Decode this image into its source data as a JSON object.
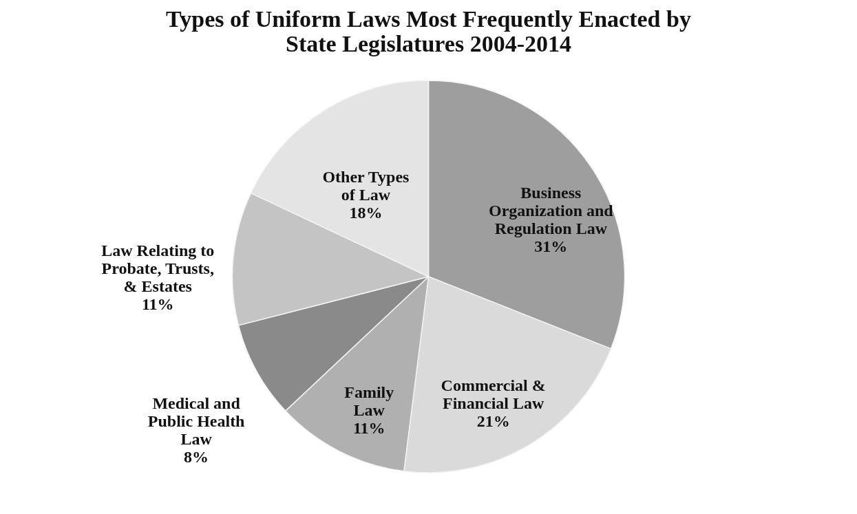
{
  "chart_data": {
    "type": "pie",
    "title": [
      "Types of Uniform Laws Most Frequently Enacted by",
      "State Legislatures 2004-2014"
    ],
    "categories": [
      "Business\nOrganization and\nRegulation Law",
      "Commercial &\nFinancial Law",
      "Family\nLaw",
      "Medical and\nPublic Health\nLaw",
      "Law Relating to\nProbate, Trusts,\n& Estates",
      "Other Types\nof Law"
    ],
    "values": [
      31,
      21,
      11,
      8,
      11,
      18
    ],
    "value_labels": [
      "31%",
      "21%",
      "11%",
      "8%",
      "11%",
      "18%"
    ],
    "colors": [
      "#9e9e9e",
      "#dadada",
      "#b0b0b0",
      "#8a8a8a",
      "#c4c4c4",
      "#e4e4e4"
    ],
    "legend": false
  }
}
